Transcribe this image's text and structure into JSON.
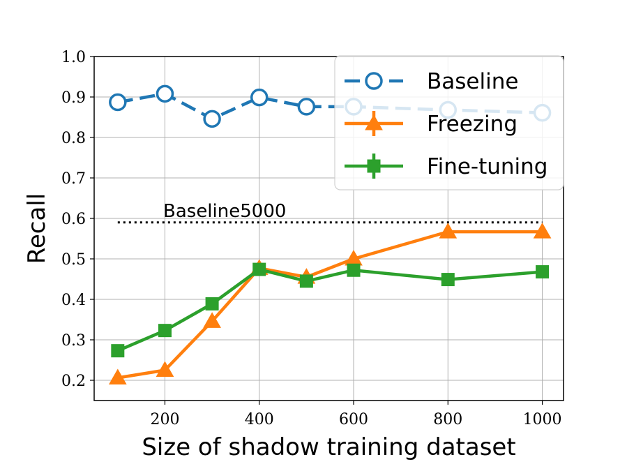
{
  "chart_data": {
    "type": "line",
    "xlabel": "Size of shadow training dataset",
    "ylabel": "Recall",
    "xlim": [
      50,
      1045
    ],
    "ylim": [
      0.15,
      1.0
    ],
    "xticks": [
      200,
      400,
      600,
      800,
      1000
    ],
    "xtick_labels": [
      "200",
      "400",
      "600",
      "800",
      "1000"
    ],
    "yticks": [
      0.2,
      0.3,
      0.4,
      0.5,
      0.6,
      0.7,
      0.8,
      0.9,
      1.0
    ],
    "ytick_labels": [
      "0.2",
      "0.3",
      "0.4",
      "0.5",
      "0.6",
      "0.7",
      "0.8",
      "0.9",
      "1.0"
    ],
    "grid": true,
    "legend_position": "top-right",
    "series": [
      {
        "name": "Baseline",
        "color": "#1f77b4",
        "line_style": "dashed",
        "marker": "circle-open",
        "x": [
          100,
          200,
          300,
          400,
          500,
          600,
          800,
          1000
        ],
        "y": [
          0.887,
          0.908,
          0.846,
          0.899,
          0.876,
          0.876,
          0.868,
          0.861
        ]
      },
      {
        "name": "Freezing",
        "color": "#ff7f0e",
        "line_style": "solid",
        "marker": "triangle",
        "x": [
          100,
          200,
          300,
          400,
          500,
          600,
          800,
          1000
        ],
        "y": [
          0.206,
          0.225,
          0.346,
          0.477,
          0.455,
          0.5,
          0.567,
          0.567
        ]
      },
      {
        "name": "Fine-tuning",
        "color": "#2ca02c",
        "line_style": "solid",
        "marker": "square",
        "x": [
          100,
          200,
          300,
          400,
          500,
          600,
          800,
          1000
        ],
        "y": [
          0.273,
          0.323,
          0.389,
          0.474,
          0.445,
          0.472,
          0.449,
          0.468
        ]
      }
    ],
    "reference_line": {
      "label": "Baseline5000",
      "y": 0.59,
      "x_start": 100,
      "x_end": 1000,
      "color": "#000000",
      "line_style": "dotted"
    }
  }
}
